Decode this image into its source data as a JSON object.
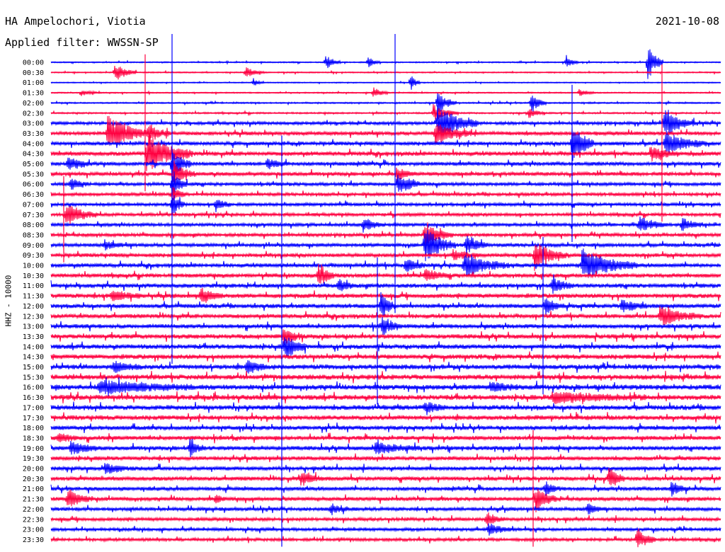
{
  "header": {
    "station": "HA Ampelochori, Viotia",
    "filter": "Applied filter: WWSSN-SP",
    "date": "2021-10-08",
    "channel": "HHZ - 10000"
  },
  "colors": {
    "trace_a": "#0000ff",
    "trace_b": "#ff0040",
    "background": "#ffffff",
    "text": "#000000"
  },
  "chart_data": {
    "type": "line",
    "title": "HA Ampelochori, Viotia",
    "subtitle": "Applied filter: WWSSN-SP",
    "date": "2021-10-08",
    "ylabel": "HHZ - 10000",
    "xlabel": "",
    "traces_per_row_minutes": 30,
    "colors": [
      "#0000ff",
      "#ff0040"
    ],
    "rows": [
      "00:00",
      "00:30",
      "01:00",
      "01:30",
      "02:00",
      "02:30",
      "03:00",
      "03:30",
      "04:00",
      "04:30",
      "05:00",
      "05:30",
      "06:00",
      "06:30",
      "07:00",
      "07:30",
      "08:00",
      "08:30",
      "09:00",
      "09:30",
      "10:00",
      "10:30",
      "11:00",
      "11:30",
      "12:00",
      "12:30",
      "13:00",
      "13:30",
      "14:00",
      "14:30",
      "15:00",
      "15:30",
      "16:00",
      "16:30",
      "17:00",
      "17:30",
      "18:00",
      "18:30",
      "19:00",
      "19:30",
      "20:00",
      "20:30",
      "21:00",
      "21:30",
      "22:00",
      "22:30",
      "23:00",
      "23:30"
    ],
    "noise": [
      0.6,
      0.6,
      0.5,
      0.6,
      0.7,
      0.8,
      1.5,
      1.8,
      1.8,
      2.0,
      1.8,
      1.8,
      1.6,
      1.5,
      1.5,
      1.5,
      1.5,
      1.6,
      1.7,
      1.8,
      1.9,
      1.9,
      2.0,
      2.1,
      2.0,
      2.0,
      2.0,
      2.1,
      2.2,
      2.2,
      2.3,
      2.4,
      2.5,
      2.4,
      2.3,
      2.2,
      2.0,
      2.0,
      2.0,
      1.9,
      1.9,
      1.9,
      1.8,
      1.8,
      1.7,
      1.6,
      1.5,
      1.5
    ],
    "events": [
      {
        "row": 0,
        "x": 460,
        "amp": 12,
        "width": 10
      },
      {
        "row": 0,
        "x": 520,
        "amp": 8,
        "width": 8
      },
      {
        "row": 0,
        "x": 800,
        "amp": 10,
        "width": 8
      },
      {
        "row": 0,
        "x": 915,
        "amp": 30,
        "width": 10
      },
      {
        "row": 1,
        "x": 162,
        "amp": 14,
        "width": 14
      },
      {
        "row": 1,
        "x": 347,
        "amp": 8,
        "width": 12
      },
      {
        "row": 2,
        "x": 358,
        "amp": 6,
        "width": 6
      },
      {
        "row": 2,
        "x": 580,
        "amp": 14,
        "width": 6
      },
      {
        "row": 3,
        "x": 115,
        "amp": 5,
        "width": 10
      },
      {
        "row": 3,
        "x": 527,
        "amp": 8,
        "width": 10
      },
      {
        "row": 3,
        "x": 818,
        "amp": 5,
        "width": 10
      },
      {
        "row": 4,
        "x": 750,
        "amp": 16,
        "width": 10
      },
      {
        "row": 4,
        "x": 618,
        "amp": 18,
        "width": 12
      },
      {
        "row": 5,
        "x": 747,
        "amp": 8,
        "width": 10
      },
      {
        "row": 5,
        "x": 612,
        "amp": 12,
        "width": 16
      },
      {
        "row": 6,
        "x": 618,
        "amp": 25,
        "width": 26
      },
      {
        "row": 6,
        "x": 938,
        "amp": 20,
        "width": 20
      },
      {
        "row": 7,
        "x": 152,
        "amp": 26,
        "width": 26
      },
      {
        "row": 7,
        "x": 615,
        "amp": 16,
        "width": 24
      },
      {
        "row": 7,
        "x": 210,
        "amp": 14,
        "width": 14
      },
      {
        "row": 8,
        "x": 808,
        "amp": 34,
        "width": 14
      },
      {
        "row": 8,
        "x": 940,
        "amp": 18,
        "width": 26
      },
      {
        "row": 9,
        "x": 207,
        "amp": 28,
        "width": 30
      },
      {
        "row": 9,
        "x": 920,
        "amp": 10,
        "width": 18
      },
      {
        "row": 10,
        "x": 96,
        "amp": 10,
        "width": 14
      },
      {
        "row": 10,
        "x": 243,
        "amp": 24,
        "width": 12
      },
      {
        "row": 10,
        "x": 378,
        "amp": 8,
        "width": 14
      },
      {
        "row": 11,
        "x": 245,
        "amp": 18,
        "width": 14
      },
      {
        "row": 11,
        "x": 560,
        "amp": 10,
        "width": 12
      },
      {
        "row": 12,
        "x": 562,
        "amp": 18,
        "width": 14
      },
      {
        "row": 12,
        "x": 243,
        "amp": 20,
        "width": 10
      },
      {
        "row": 12,
        "x": 100,
        "amp": 8,
        "width": 12
      },
      {
        "row": 13,
        "x": 243,
        "amp": 10,
        "width": 10
      },
      {
        "row": 14,
        "x": 305,
        "amp": 10,
        "width": 10
      },
      {
        "row": 14,
        "x": 243,
        "amp": 20,
        "width": 8
      },
      {
        "row": 15,
        "x": 93,
        "amp": 18,
        "width": 20
      },
      {
        "row": 16,
        "x": 513,
        "amp": 10,
        "width": 14
      },
      {
        "row": 16,
        "x": 903,
        "amp": 12,
        "width": 18
      },
      {
        "row": 16,
        "x": 963,
        "amp": 10,
        "width": 14
      },
      {
        "row": 17,
        "x": 600,
        "amp": 18,
        "width": 18
      },
      {
        "row": 18,
        "x": 600,
        "amp": 26,
        "width": 20
      },
      {
        "row": 18,
        "x": 148,
        "amp": 8,
        "width": 12
      },
      {
        "row": 18,
        "x": 658,
        "amp": 16,
        "width": 14
      },
      {
        "row": 19,
        "x": 755,
        "amp": 20,
        "width": 22
      },
      {
        "row": 19,
        "x": 640,
        "amp": 8,
        "width": 16
      },
      {
        "row": 20,
        "x": 655,
        "amp": 16,
        "width": 30
      },
      {
        "row": 20,
        "x": 822,
        "amp": 22,
        "width": 36
      },
      {
        "row": 20,
        "x": 573,
        "amp": 10,
        "width": 14
      },
      {
        "row": 21,
        "x": 450,
        "amp": 20,
        "width": 10
      },
      {
        "row": 21,
        "x": 600,
        "amp": 10,
        "width": 16
      },
      {
        "row": 22,
        "x": 478,
        "amp": 10,
        "width": 10
      },
      {
        "row": 22,
        "x": 780,
        "amp": 12,
        "width": 14
      },
      {
        "row": 23,
        "x": 284,
        "amp": 12,
        "width": 14
      },
      {
        "row": 23,
        "x": 158,
        "amp": 8,
        "width": 20
      },
      {
        "row": 24,
        "x": 538,
        "amp": 20,
        "width": 10
      },
      {
        "row": 24,
        "x": 878,
        "amp": 10,
        "width": 16
      },
      {
        "row": 24,
        "x": 770,
        "amp": 12,
        "width": 12
      },
      {
        "row": 25,
        "x": 932,
        "amp": 14,
        "width": 26
      },
      {
        "row": 26,
        "x": 540,
        "amp": 14,
        "width": 12
      },
      {
        "row": 27,
        "x": 400,
        "amp": 12,
        "width": 14
      },
      {
        "row": 28,
        "x": 402,
        "amp": 18,
        "width": 14
      },
      {
        "row": 30,
        "x": 348,
        "amp": 10,
        "width": 14
      },
      {
        "row": 30,
        "x": 160,
        "amp": 8,
        "width": 18
      },
      {
        "row": 32,
        "x": 140,
        "amp": 10,
        "width": 60
      },
      {
        "row": 32,
        "x": 692,
        "amp": 8,
        "width": 18
      },
      {
        "row": 33,
        "x": 780,
        "amp": 8,
        "width": 60
      },
      {
        "row": 34,
        "x": 600,
        "amp": 10,
        "width": 14
      },
      {
        "row": 37,
        "x": 82,
        "amp": 8,
        "width": 14
      },
      {
        "row": 38,
        "x": 100,
        "amp": 10,
        "width": 18
      },
      {
        "row": 38,
        "x": 268,
        "amp": 12,
        "width": 10
      },
      {
        "row": 38,
        "x": 530,
        "amp": 8,
        "width": 30
      },
      {
        "row": 40,
        "x": 148,
        "amp": 8,
        "width": 18
      },
      {
        "row": 41,
        "x": 860,
        "amp": 18,
        "width": 10
      },
      {
        "row": 41,
        "x": 425,
        "amp": 10,
        "width": 14
      },
      {
        "row": 42,
        "x": 948,
        "amp": 10,
        "width": 12
      },
      {
        "row": 42,
        "x": 770,
        "amp": 10,
        "width": 10
      },
      {
        "row": 43,
        "x": 95,
        "amp": 14,
        "width": 16
      },
      {
        "row": 43,
        "x": 756,
        "amp": 18,
        "width": 14
      },
      {
        "row": 43,
        "x": 305,
        "amp": 6,
        "width": 6
      },
      {
        "row": 44,
        "x": 467,
        "amp": 8,
        "width": 12
      },
      {
        "row": 44,
        "x": 830,
        "amp": 8,
        "width": 12
      },
      {
        "row": 45,
        "x": 687,
        "amp": 10,
        "width": 12
      },
      {
        "row": 46,
        "x": 690,
        "amp": 8,
        "width": 18
      },
      {
        "row": 47,
        "x": 900,
        "amp": 16,
        "width": 12
      }
    ],
    "spikes": [
      {
        "x": 243,
        "from_row": 0,
        "to_row": 29,
        "color": "#0000ff"
      },
      {
        "x": 398,
        "from_row": 10,
        "to_row": 47,
        "color": "#0000ff"
      },
      {
        "x": 558,
        "from_row": 0,
        "to_row": 24,
        "color": "#0000ff"
      },
      {
        "x": 808,
        "from_row": 5,
        "to_row": 17,
        "color": "#0000ff"
      },
      {
        "x": 935,
        "from_row": 3,
        "to_row": 15,
        "color": "#ff0040"
      },
      {
        "x": 753,
        "from_row": 39,
        "to_row": 47,
        "color": "#ff0040"
      },
      {
        "x": 533,
        "from_row": 22,
        "to_row": 33,
        "color": "#0000ff"
      },
      {
        "x": 205,
        "from_row": 2,
        "to_row": 12,
        "color": "#ff0040"
      },
      {
        "x": 90,
        "from_row": 14,
        "to_row": 19,
        "color": "#ff0040"
      },
      {
        "x": 767,
        "from_row": 20,
        "to_row": 32,
        "color": "#0000ff"
      }
    ]
  }
}
